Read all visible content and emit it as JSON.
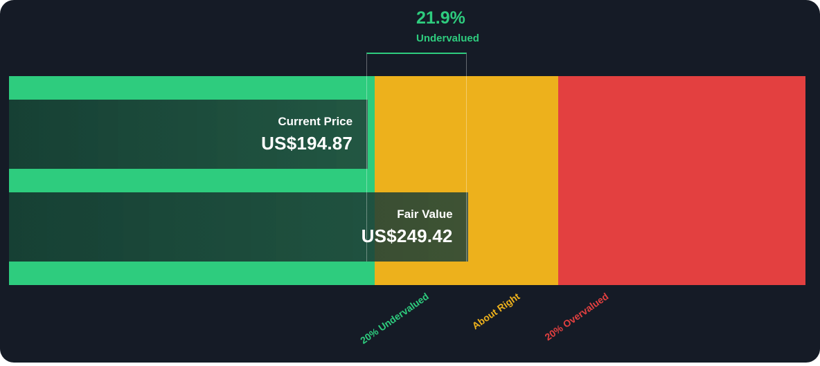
{
  "chart_data": {
    "type": "bar",
    "title": "",
    "categories": [
      "Current Price",
      "Fair Value"
    ],
    "values": [
      194.87,
      249.42
    ],
    "value_labels": [
      "US$194.87",
      "US$249.42"
    ],
    "currency": "US$",
    "difference": {
      "percent": "21.9%",
      "label": "Undervalued"
    },
    "zones": [
      {
        "label": "20% Undervalued",
        "color": "#2ecc7e"
      },
      {
        "label": "About Right",
        "color": "#edb11c"
      },
      {
        "label": "20% Overvalued",
        "color": "#e34040"
      }
    ],
    "zone_thresholds": [
      199.54,
      299.3
    ],
    "xlim": [
      0,
      434.23
    ]
  },
  "colors": {
    "background": "#151b26",
    "green": "#2ecc7e",
    "yellow": "#edb11c",
    "red": "#e34040"
  }
}
